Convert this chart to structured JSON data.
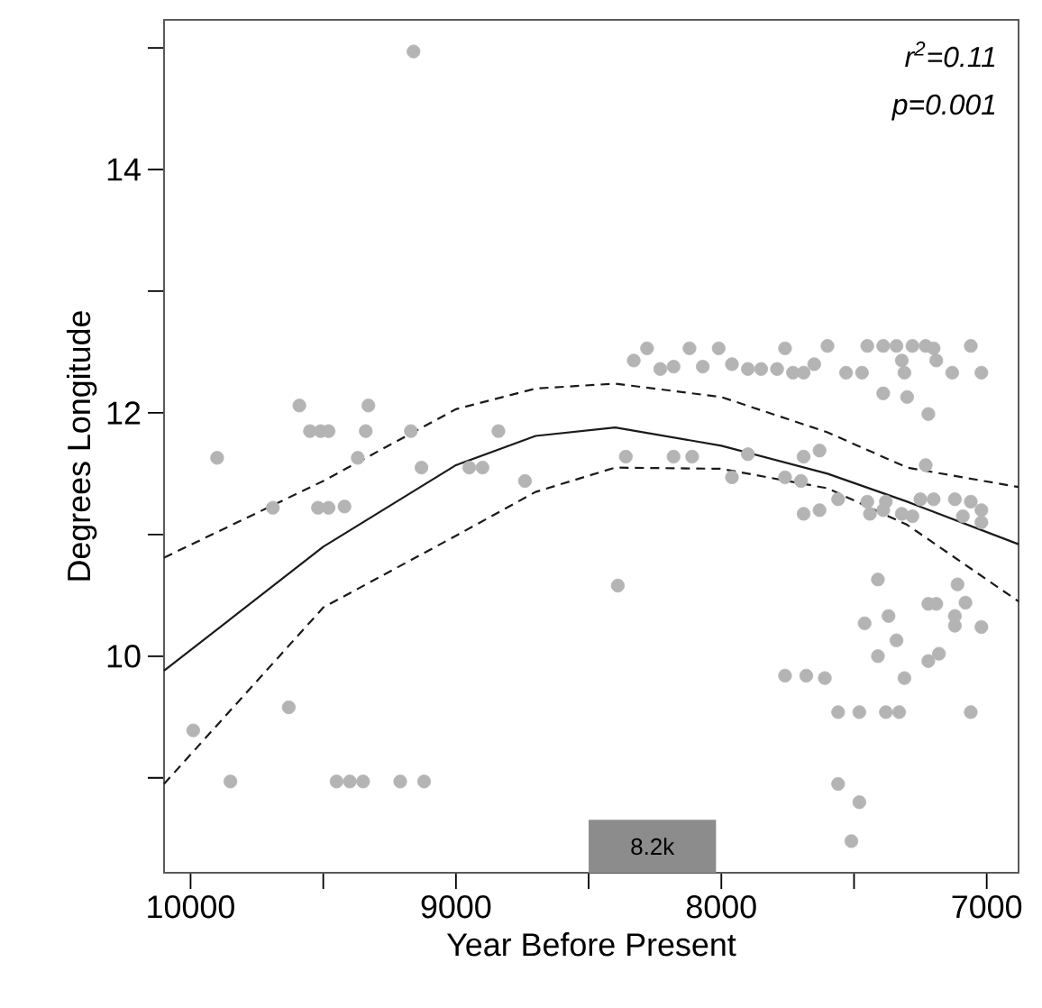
{
  "chart_data": {
    "type": "scatter",
    "xlabel": "Year Before Present",
    "ylabel": "Degrees Longitude",
    "annotations": [
      "r$^{2}$=0.11",
      "p=0.001"
    ],
    "xlim": [
      10100,
      6880
    ],
    "ylim": [
      8.22,
      15.23
    ],
    "xticks": [
      10000,
      {
        "value": 9500,
        "label": null
      },
      9000,
      {
        "value": 8500,
        "label": null
      },
      8000,
      {
        "value": 7500,
        "label": null
      },
      7000
    ],
    "yticks": [
      {
        "value": 9,
        "label": null
      },
      10,
      {
        "value": 11,
        "label": null
      },
      12,
      {
        "value": 13,
        "label": null
      },
      14,
      {
        "value": 15,
        "label": null
      }
    ],
    "bands": [
      {
        "axis": "x",
        "from": 8500,
        "to": 8020,
        "label": "8.2k",
        "color": "#8c8c8c"
      }
    ],
    "series": [
      {
        "color": "#b4b4b4",
        "marker": "circle",
        "x": [
          9990,
          9850,
          9630,
          9450,
          9400,
          9350,
          9210,
          9120,
          9690,
          9520,
          9480,
          9420,
          9160,
          9590,
          9330,
          9550,
          9510,
          9480,
          9340,
          9170,
          8840,
          9900,
          9370,
          9130,
          8950,
          8900,
          8740,
          8330,
          8280,
          8230,
          8180,
          8120,
          8070,
          8010,
          7960,
          7900,
          7850,
          7760,
          7790,
          7730,
          7690,
          7650,
          7600,
          7530,
          7470,
          7450,
          7390,
          7340,
          7280,
          7230,
          7200,
          7320,
          7310,
          7190,
          7130,
          7060,
          7020,
          7390,
          7300,
          7220,
          8360,
          8180,
          8110,
          7900,
          7960,
          7690,
          7630,
          7760,
          7700,
          7230,
          7690,
          7630,
          7560,
          7440,
          7390,
          7320,
          7450,
          7380,
          7250,
          7200,
          7120,
          7060,
          7020,
          7020,
          7090,
          7280,
          8390,
          7410,
          7370,
          7460,
          7340,
          7410,
          7310,
          7220,
          7190,
          7110,
          7080,
          7120,
          7120,
          7020,
          7220,
          7180,
          7760,
          7680,
          7610,
          7560,
          7480,
          7380,
          7330,
          7060,
          7560,
          7480,
          7510
        ],
        "values": [
          9.39,
          8.97,
          9.58,
          8.97,
          8.97,
          8.97,
          8.97,
          8.97,
          11.22,
          11.22,
          11.22,
          11.23,
          14.97,
          12.06,
          12.06,
          11.85,
          11.85,
          11.85,
          11.85,
          11.85,
          11.85,
          11.63,
          11.63,
          11.55,
          11.55,
          11.55,
          11.44,
          12.43,
          12.53,
          12.36,
          12.38,
          12.53,
          12.38,
          12.53,
          12.4,
          12.36,
          12.36,
          12.53,
          12.36,
          12.33,
          12.33,
          12.4,
          12.55,
          12.33,
          12.33,
          12.55,
          12.55,
          12.55,
          12.55,
          12.55,
          12.53,
          12.43,
          12.33,
          12.43,
          12.33,
          12.55,
          12.33,
          12.16,
          12.13,
          11.99,
          11.64,
          11.64,
          11.64,
          11.66,
          11.47,
          11.64,
          11.69,
          11.47,
          11.44,
          11.57,
          11.17,
          11.2,
          11.29,
          11.17,
          11.2,
          11.17,
          11.27,
          11.27,
          11.29,
          11.29,
          11.29,
          11.27,
          11.2,
          11.1,
          11.15,
          11.15,
          10.58,
          10.63,
          10.33,
          10.27,
          10.13,
          10.0,
          9.82,
          10.43,
          10.43,
          10.59,
          10.44,
          10.33,
          10.25,
          10.24,
          9.96,
          10.02,
          9.84,
          9.84,
          9.82,
          9.54,
          9.54,
          9.54,
          9.54,
          9.54,
          8.95,
          8.8,
          8.48
        ]
      },
      {
        "type": "line",
        "color": "#1a1a1a",
        "marker": "none",
        "line_style": "solid",
        "x": [
          10100,
          9500,
          9000,
          8700,
          8400,
          8000,
          7600,
          7300,
          6880
        ],
        "values": [
          9.88,
          10.9,
          11.57,
          11.81,
          11.88,
          11.73,
          11.5,
          11.27,
          10.92
        ]
      },
      {
        "type": "line",
        "color": "#1a1a1a",
        "marker": "none",
        "line_style": "dashed",
        "x": [
          10100,
          9500,
          9000,
          8700,
          8400,
          8000,
          7600,
          7300,
          6880
        ],
        "values": [
          10.81,
          11.44,
          12.03,
          12.2,
          12.24,
          12.13,
          11.84,
          11.55,
          11.39
        ]
      },
      {
        "type": "line",
        "color": "#1a1a1a",
        "marker": "none",
        "line_style": "dashed",
        "x": [
          10100,
          9500,
          9000,
          8700,
          8400,
          8000,
          7600,
          7300,
          6880
        ],
        "values": [
          8.95,
          10.4,
          10.99,
          11.35,
          11.55,
          11.54,
          11.38,
          11.08,
          10.45
        ]
      }
    ]
  }
}
